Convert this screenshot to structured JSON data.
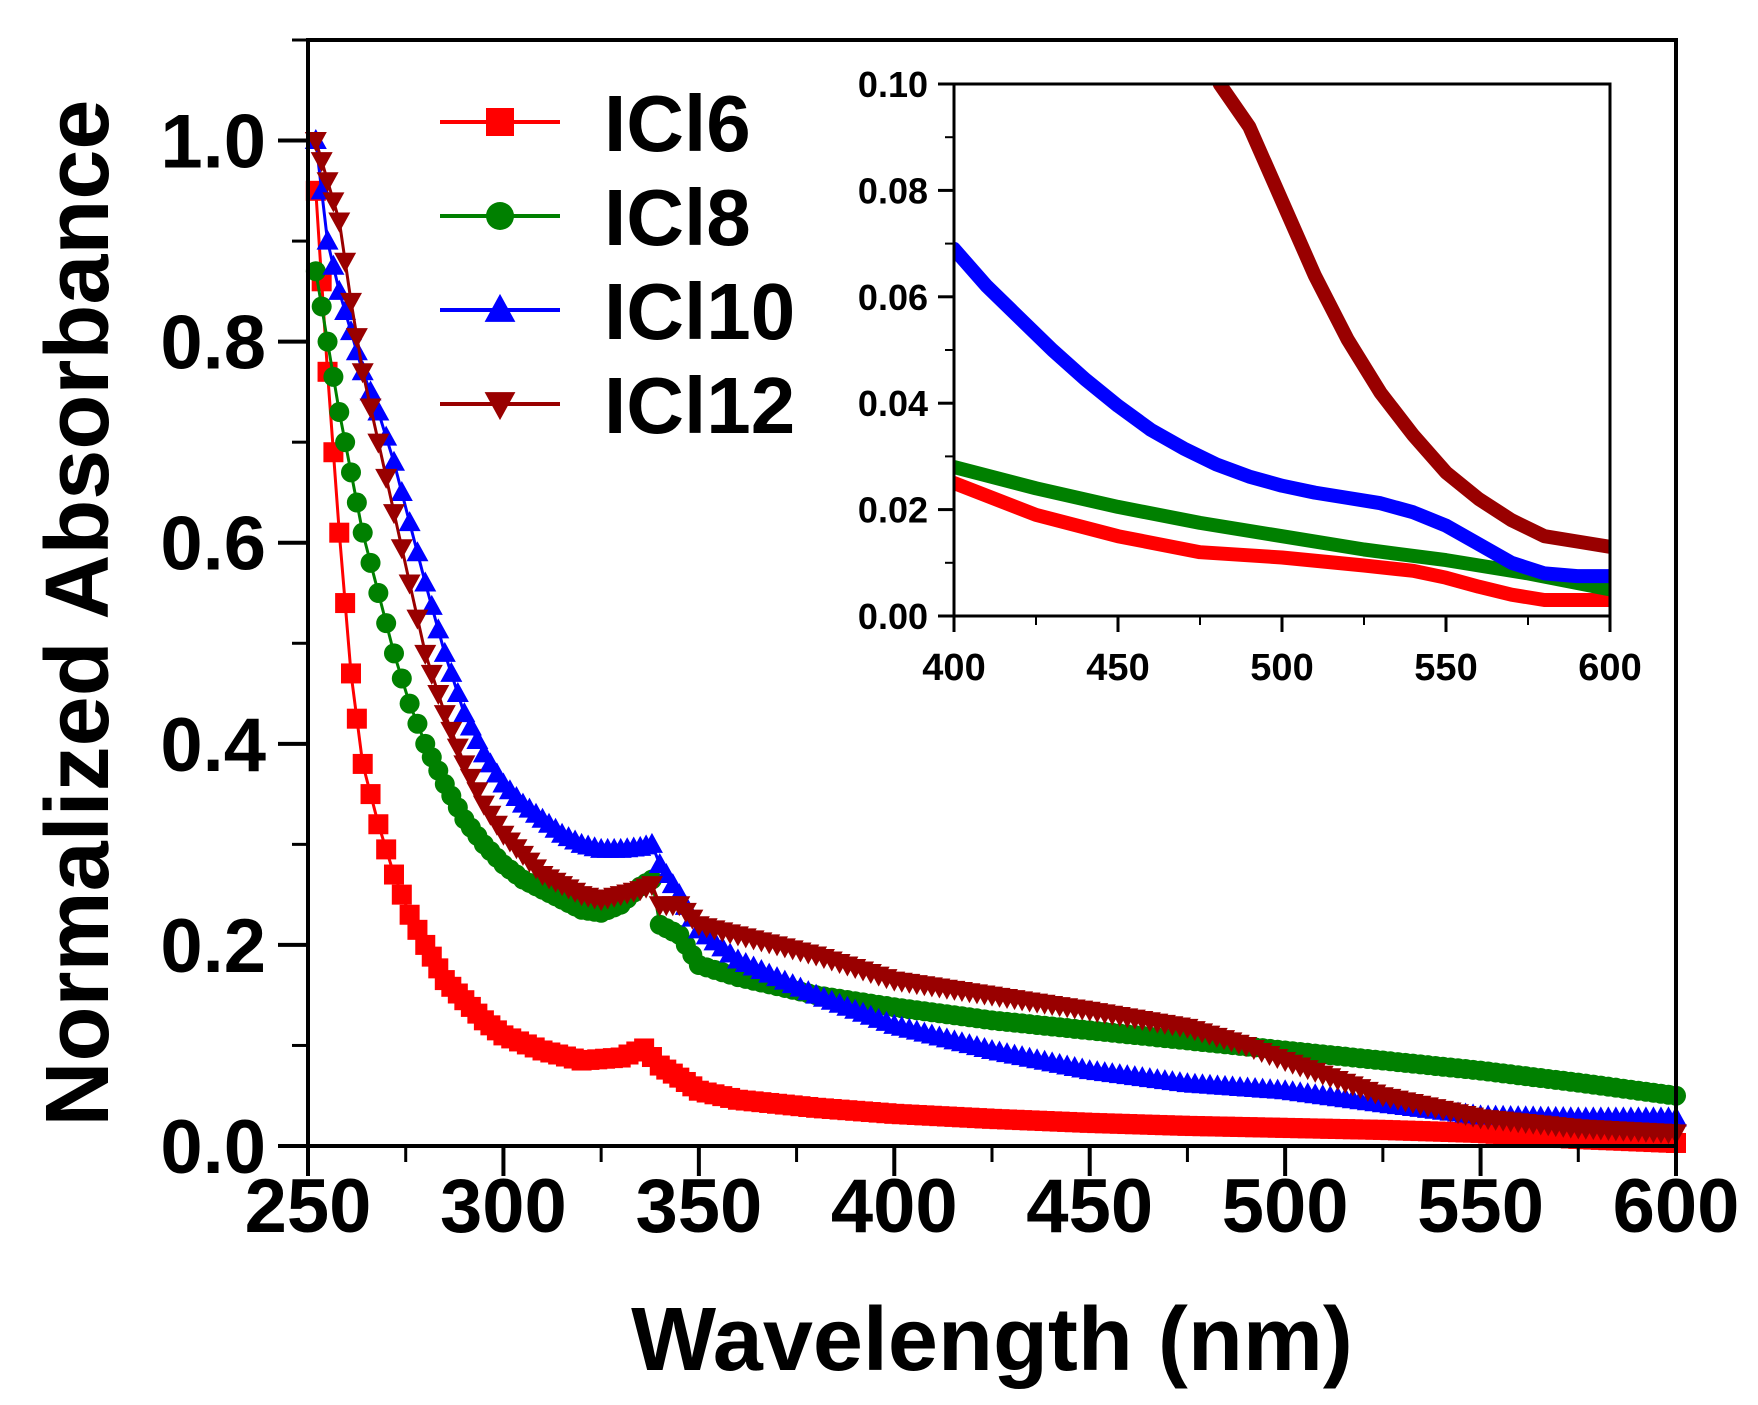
{
  "chart_data": [
    {
      "name": "main",
      "type": "line",
      "xlabel": "Wavelength (nm)",
      "ylabel": "Normalized Absorbance",
      "xlim": [
        250,
        600
      ],
      "ylim": [
        0,
        1.1
      ],
      "xticks": [
        250,
        300,
        350,
        400,
        450,
        500,
        550,
        600
      ],
      "xtick_labels": [
        "250",
        "300",
        "350",
        "400",
        "450",
        "500",
        "550",
        "600"
      ],
      "yticks": [
        0.0,
        0.2,
        0.4,
        0.6,
        0.8,
        1.0
      ],
      "ytick_labels": [
        "0.0",
        "0.2",
        "0.4",
        "0.6",
        "0.8",
        "1.0"
      ],
      "legend": {
        "position": "top-left",
        "entries": [
          "ICl6",
          "ICl8",
          "ICl10",
          "ICl12"
        ]
      },
      "series": [
        {
          "name": "ICl6",
          "color": "#ff0000",
          "marker": "square",
          "x": [
            252,
            255,
            258,
            261,
            264,
            268,
            272,
            276,
            280,
            285,
            290,
            295,
            300,
            310,
            320,
            330,
            336,
            340,
            345,
            350,
            360,
            380,
            400,
            425,
            450,
            475,
            500,
            525,
            550,
            575,
            600
          ],
          "y": [
            0.95,
            0.77,
            0.61,
            0.47,
            0.38,
            0.32,
            0.27,
            0.23,
            0.2,
            0.165,
            0.145,
            0.125,
            0.11,
            0.095,
            0.085,
            0.088,
            0.097,
            0.08,
            0.068,
            0.055,
            0.046,
            0.038,
            0.032,
            0.027,
            0.023,
            0.02,
            0.018,
            0.016,
            0.013,
            0.007,
            0.003
          ]
        },
        {
          "name": "ICl8",
          "color": "#008000",
          "marker": "circle",
          "x": [
            252,
            255,
            258,
            261,
            264,
            268,
            272,
            276,
            280,
            285,
            290,
            295,
            300,
            305,
            310,
            315,
            320,
            325,
            330,
            335,
            338,
            340,
            345,
            350,
            360,
            380,
            400,
            425,
            450,
            475,
            500,
            525,
            550,
            575,
            600
          ],
          "y": [
            0.87,
            0.8,
            0.73,
            0.67,
            0.61,
            0.55,
            0.49,
            0.44,
            0.4,
            0.36,
            0.325,
            0.3,
            0.28,
            0.265,
            0.255,
            0.245,
            0.235,
            0.232,
            0.24,
            0.258,
            0.265,
            0.22,
            0.21,
            0.18,
            0.168,
            0.15,
            0.138,
            0.125,
            0.115,
            0.105,
            0.095,
            0.085,
            0.075,
            0.063,
            0.05
          ]
        },
        {
          "name": "ICl10",
          "color": "#0000ff",
          "marker": "triangle-up",
          "x": [
            252,
            255,
            258,
            261,
            264,
            268,
            272,
            276,
            280,
            285,
            290,
            295,
            300,
            305,
            310,
            315,
            320,
            325,
            330,
            335,
            338,
            340,
            345,
            350,
            360,
            380,
            400,
            425,
            450,
            475,
            500,
            525,
            550,
            575,
            600
          ],
          "y": [
            1.0,
            0.9,
            0.85,
            0.81,
            0.77,
            0.73,
            0.68,
            0.62,
            0.56,
            0.49,
            0.43,
            0.39,
            0.36,
            0.34,
            0.325,
            0.31,
            0.3,
            0.295,
            0.295,
            0.297,
            0.3,
            0.28,
            0.25,
            0.215,
            0.185,
            0.15,
            0.12,
            0.095,
            0.075,
            0.062,
            0.055,
            0.042,
            0.03,
            0.028,
            0.028
          ]
        },
        {
          "name": "ICl12",
          "color": "#990000",
          "marker": "triangle-down",
          "x": [
            252,
            255,
            258,
            261,
            264,
            268,
            272,
            276,
            280,
            285,
            290,
            295,
            300,
            305,
            310,
            315,
            320,
            325,
            330,
            335,
            338,
            340,
            345,
            350,
            360,
            380,
            400,
            425,
            450,
            475,
            490,
            500,
            525,
            550,
            575,
            600
          ],
          "y": [
            1.0,
            0.96,
            0.92,
            0.84,
            0.77,
            0.7,
            0.63,
            0.56,
            0.49,
            0.43,
            0.38,
            0.34,
            0.31,
            0.29,
            0.27,
            0.26,
            0.25,
            0.245,
            0.25,
            0.255,
            0.26,
            0.24,
            0.24,
            0.22,
            0.21,
            0.19,
            0.165,
            0.15,
            0.135,
            0.118,
            0.1,
            0.085,
            0.05,
            0.028,
            0.018,
            0.013
          ]
        }
      ]
    },
    {
      "name": "inset",
      "type": "line",
      "xlim": [
        400,
        600
      ],
      "ylim": [
        0,
        0.1
      ],
      "xticks": [
        400,
        450,
        500,
        550,
        600
      ],
      "xtick_labels": [
        "400",
        "450",
        "500",
        "550",
        "600"
      ],
      "yticks": [
        0.0,
        0.02,
        0.04,
        0.06,
        0.08,
        0.1
      ],
      "ytick_labels": [
        "0.00",
        "0.02",
        "0.04",
        "0.06",
        "0.08",
        "0.10"
      ],
      "series": [
        {
          "name": "ICl6",
          "color": "#ff0000",
          "x": [
            400,
            425,
            450,
            475,
            500,
            525,
            540,
            550,
            560,
            570,
            580,
            600
          ],
          "y": [
            0.025,
            0.019,
            0.015,
            0.012,
            0.011,
            0.0095,
            0.0085,
            0.0072,
            0.0055,
            0.004,
            0.003,
            0.003
          ]
        },
        {
          "name": "ICl8",
          "color": "#008000",
          "x": [
            400,
            425,
            450,
            475,
            500,
            525,
            550,
            575,
            600
          ],
          "y": [
            0.028,
            0.024,
            0.0205,
            0.0175,
            0.015,
            0.0125,
            0.0105,
            0.008,
            0.005
          ]
        },
        {
          "name": "ICl10",
          "color": "#0000ff",
          "x": [
            400,
            410,
            420,
            430,
            440,
            450,
            460,
            470,
            480,
            490,
            500,
            510,
            520,
            530,
            540,
            550,
            560,
            570,
            580,
            590,
            600
          ],
          "y": [
            0.069,
            0.062,
            0.056,
            0.05,
            0.0445,
            0.0395,
            0.035,
            0.0315,
            0.0285,
            0.0262,
            0.0245,
            0.0232,
            0.0222,
            0.0212,
            0.0195,
            0.017,
            0.0135,
            0.01,
            0.008,
            0.0075,
            0.0075
          ]
        },
        {
          "name": "ICl12",
          "color": "#990000",
          "x": [
            481,
            490,
            500,
            510,
            520,
            530,
            540,
            550,
            560,
            570,
            580,
            590,
            600
          ],
          "y": [
            0.1,
            0.092,
            0.078,
            0.064,
            0.052,
            0.042,
            0.034,
            0.027,
            0.022,
            0.018,
            0.015,
            0.014,
            0.013
          ]
        }
      ]
    }
  ]
}
